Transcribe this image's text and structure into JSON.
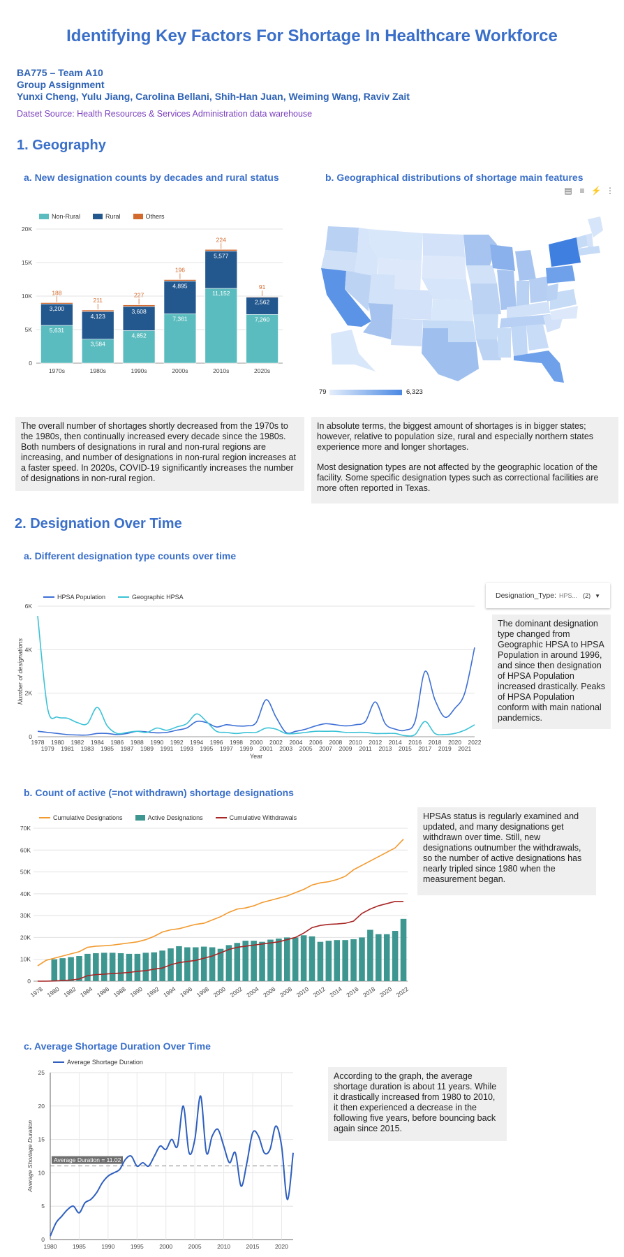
{
  "header": {
    "title": "Identifying Key Factors For Shortage In Healthcare Workforce",
    "course": "BA775 – Team A10",
    "assignment": "Group Assignment",
    "members": "Yunxi Cheng, Yulu Jiang, Carolina Bellani, Shih-Han Juan, Weiming Wang, Raviv Zait",
    "source": "Datset Source: Health Resources & Services Administration data warehouse"
  },
  "section1": {
    "title": "1. Geography",
    "a_title": "a. New designation counts by decades and rural status",
    "b_title": "b. Geographical distributions of shortage main features",
    "note_a": "The overall number of shortages shortly decreased from the 1970s to the 1980s, then continually increased every decade since the 1980s. Both numbers of designations in rural and non-rural regions are increasing, and number of designations in non-rural region increases at a faster speed. In 2020s, COVID-19 significantly increases the number of designations in non-rural region.",
    "note_b1": "In absolute terms, the biggest amount of shortages is in bigger states; however, relative to population size, rural and especially northern states experience more and longer shortages.",
    "note_b2": "Most designation types are not affected by the geographic location of the facility. Some specific designation types such as correctional facilities are more often reported in Texas.",
    "map_min": "79",
    "map_max": "6,323",
    "toolbar_icons": [
      "chart-edit-icon",
      "filter-icon",
      "bolt-icon",
      "more-vert-icon"
    ]
  },
  "section2": {
    "title": "2. Designation Over Time",
    "a_title": "a. Different designation type counts over time",
    "b_title": "b. Count of active (=not withdrawn) shortage designations",
    "c_title": "c. Average Shortage Duration Over Time",
    "filter_label": "Designation_Type:",
    "filter_value": "HPS...",
    "filter_count": "(2)",
    "note_a": "The dominant designation type changed from Geographic HPSA to HPSA Population in around 1996, and since then designation of HPSA Population increased drastically. Peaks of HPSA Population conform with main national pandemics.",
    "note_b": "HPSAs status is regularly examined and updated, and many designations get withdrawn over time. Still, new designations outnumber the withdrawals, so the number of active designations has nearly tripled since 1980 when the measurement began.",
    "note_c": "According to the graph, the average shortage duration is about 11 years. While it drastically increased from 1980 to 2010, it then experienced a decrease in the following five years, before bouncing back again since 2015."
  },
  "chart_data": [
    {
      "type": "bar",
      "stacked": true,
      "categories": [
        "1970s",
        "1980s",
        "1990s",
        "2000s",
        "2010s",
        "2020s"
      ],
      "series": [
        {
          "name": "Non-Rural",
          "color": "#5bbcbf",
          "values": [
            5631,
            3584,
            4852,
            7361,
            11152,
            7260
          ]
        },
        {
          "name": "Rural",
          "color": "#23588f",
          "values": [
            3200,
            4123,
            3608,
            4895,
            5577,
            2562
          ]
        },
        {
          "name": "Others",
          "color": "#d2692d",
          "values": [
            188,
            211,
            227,
            196,
            224,
            91
          ]
        }
      ],
      "ylim": [
        0,
        20000
      ],
      "yticks": [
        "0",
        "5K",
        "10K",
        "15K",
        "20K"
      ],
      "legend": "top-left"
    },
    {
      "type": "line",
      "x": [
        1978,
        1979,
        1980,
        1981,
        1982,
        1983,
        1984,
        1985,
        1986,
        1987,
        1988,
        1989,
        1990,
        1991,
        1992,
        1993,
        1994,
        1995,
        1996,
        1997,
        1998,
        1999,
        2000,
        2001,
        2002,
        2003,
        2004,
        2005,
        2006,
        2007,
        2008,
        2009,
        2010,
        2011,
        2012,
        2013,
        2014,
        2015,
        2016,
        2017,
        2018,
        2019,
        2020,
        2021,
        2022
      ],
      "series": [
        {
          "name": "HPSA Population",
          "color": "#3d6fd6",
          "values": [
            250,
            200,
            150,
            100,
            80,
            80,
            150,
            150,
            100,
            150,
            250,
            220,
            180,
            200,
            300,
            400,
            700,
            650,
            450,
            550,
            500,
            500,
            650,
            1700,
            900,
            200,
            250,
            350,
            500,
            600,
            550,
            500,
            550,
            700,
            1600,
            600,
            350,
            300,
            700,
            3000,
            1700,
            900,
            1300,
            2000,
            4100
          ]
        },
        {
          "name": "Geographic HPSA",
          "color": "#3bc2d6",
          "values": [
            5550,
            1300,
            900,
            850,
            650,
            600,
            1350,
            500,
            150,
            200,
            250,
            200,
            400,
            300,
            450,
            600,
            1050,
            700,
            250,
            200,
            150,
            200,
            200,
            400,
            350,
            150,
            150,
            200,
            250,
            250,
            250,
            200,
            200,
            200,
            150,
            150,
            150,
            50,
            100,
            700,
            150,
            100,
            150,
            300,
            550
          ]
        }
      ],
      "xlabel": "Year",
      "ylabel": "Number of designations",
      "ylim": [
        0,
        6000
      ],
      "yticks": [
        "0",
        "2K",
        "4K",
        "6K"
      ],
      "legend": "top-left"
    },
    {
      "type": "bar",
      "x": [
        1978,
        1979,
        1980,
        1981,
        1982,
        1983,
        1984,
        1985,
        1986,
        1987,
        1988,
        1989,
        1990,
        1991,
        1992,
        1993,
        1994,
        1995,
        1996,
        1997,
        1998,
        1999,
        2000,
        2001,
        2002,
        2003,
        2004,
        2005,
        2006,
        2007,
        2008,
        2009,
        2010,
        2011,
        2012,
        2013,
        2014,
        2015,
        2016,
        2017,
        2018,
        2019,
        2020,
        2021,
        2022
      ],
      "xticks": [
        "1978",
        "1980",
        "1982",
        "1984",
        "1986",
        "1988",
        "1990",
        "1992",
        "1994",
        "1996",
        "1998",
        "2000",
        "2002",
        "2004",
        "2006",
        "2008",
        "2010",
        "2012",
        "2014",
        "2016",
        "2018",
        "2020",
        "2022"
      ],
      "series": [
        {
          "name": "Cumulative Designations",
          "kind": "line",
          "color": "#f29a2e",
          "values": [
            7000,
            9500,
            10500,
            11500,
            12500,
            13500,
            15500,
            16000,
            16200,
            16500,
            17000,
            17500,
            18000,
            19000,
            20500,
            22500,
            23500,
            24000,
            25000,
            26000,
            26500,
            28000,
            29500,
            31500,
            33000,
            33500,
            34500,
            36000,
            37000,
            38000,
            39000,
            40500,
            42000,
            44000,
            45000,
            45500,
            46500,
            48000,
            51000,
            53000,
            55000,
            57000,
            59000,
            61000,
            65000
          ]
        },
        {
          "name": "Active Designations",
          "kind": "bar",
          "color": "#3d9690",
          "values": [
            0,
            0,
            10000,
            10500,
            11000,
            11500,
            12500,
            12800,
            13000,
            13000,
            12800,
            12500,
            12500,
            13000,
            13200,
            14000,
            15000,
            16000,
            15500,
            15500,
            15800,
            15500,
            14800,
            16500,
            17500,
            18500,
            18500,
            18000,
            19000,
            19500,
            20000,
            20000,
            21000,
            20500,
            18000,
            18500,
            18800,
            18800,
            19200,
            20000,
            23500,
            21500,
            21500,
            23000,
            28500
          ]
        },
        {
          "name": "Cumulative Withdrawals",
          "kind": "line",
          "color": "#a82626",
          "values": [
            0,
            0,
            100,
            300,
            500,
            1000,
            2500,
            3000,
            3200,
            3500,
            3700,
            4000,
            4500,
            4800,
            5500,
            6000,
            7500,
            8500,
            9000,
            9500,
            10500,
            11500,
            13000,
            14500,
            15500,
            16000,
            16500,
            17000,
            17500,
            18000,
            19000,
            20000,
            22000,
            24500,
            25500,
            26000,
            26200,
            26500,
            27500,
            31000,
            33000,
            34500,
            35500,
            36500,
            36500
          ]
        }
      ],
      "ylim": [
        0,
        70000
      ],
      "yticks": [
        "0",
        "10K",
        "20K",
        "30K",
        "40K",
        "50K",
        "60K",
        "70K"
      ],
      "legend": "top-left"
    },
    {
      "type": "line",
      "x": [
        1980,
        1981,
        1982,
        1983,
        1984,
        1985,
        1986,
        1987,
        1988,
        1989,
        1990,
        1991,
        1992,
        1993,
        1994,
        1995,
        1996,
        1997,
        1998,
        1999,
        2000,
        2001,
        2002,
        2003,
        2004,
        2005,
        2006,
        2007,
        2008,
        2009,
        2010,
        2011,
        2012,
        2013,
        2014,
        2015,
        2016,
        2017,
        2018,
        2019,
        2020,
        2021,
        2022
      ],
      "series": [
        {
          "name": "Average Shortage Duration",
          "color": "#2e5fbf",
          "values": [
            0.5,
            2.5,
            3.5,
            4.5,
            5,
            4,
            5.5,
            6,
            7,
            8.5,
            9.5,
            10,
            10.5,
            12,
            12.5,
            11,
            11.5,
            11,
            12.5,
            14,
            13.5,
            15,
            14,
            20,
            13,
            15,
            21.5,
            13,
            15.5,
            16.5,
            14,
            11.5,
            13,
            8,
            11.5,
            16,
            15.5,
            13,
            13.5,
            17,
            14,
            6,
            13
          ]
        }
      ],
      "reference_line": {
        "label": "Average Duration = 11.02",
        "value": 11.02
      },
      "ylabel": "Average Shortage Duration",
      "ylim": [
        0,
        25
      ],
      "yticks": [
        "0",
        "5",
        "10",
        "15",
        "20",
        "25"
      ],
      "xticks": [
        "1980",
        "1985",
        "1990",
        "1995",
        "2000",
        "2005",
        "2010",
        "2015",
        "2020"
      ],
      "legend": "top-left"
    }
  ]
}
